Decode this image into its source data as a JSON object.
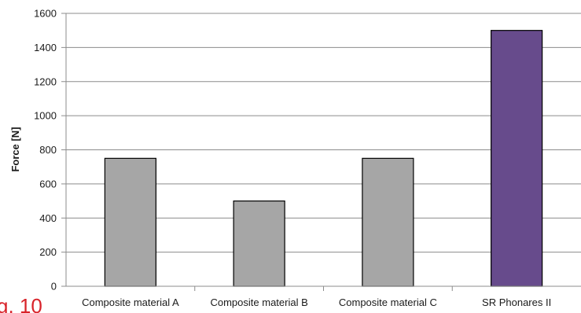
{
  "chart_data": {
    "type": "bar",
    "categories": [
      "Composite material A",
      "Composite material B",
      "Composite material C",
      "SR Phonares II"
    ],
    "values": [
      750,
      500,
      750,
      1500
    ],
    "ylabel": "Force [N]",
    "xlabel": "",
    "ylim": [
      0,
      1600
    ],
    "yticks": [
      0,
      200,
      400,
      600,
      800,
      1000,
      1200,
      1400,
      1600
    ],
    "grid": true,
    "legend": "none",
    "colors": [
      "#a6a6a6",
      "#a6a6a6",
      "#a6a6a6",
      "#674b8c"
    ]
  },
  "corner_fragment": "g. 10"
}
